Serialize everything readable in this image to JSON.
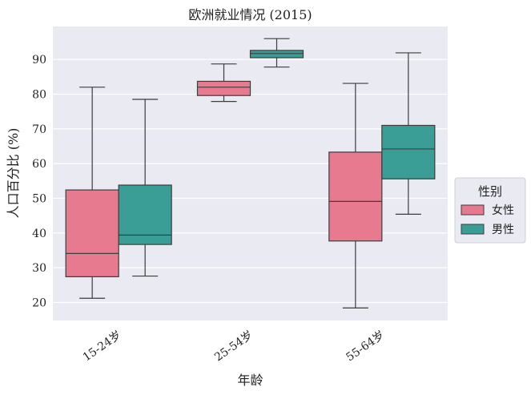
{
  "chart_data": {
    "type": "box",
    "title": "欧洲就业情况 (2015)",
    "xlabel": "年龄",
    "ylabel": "人口百分比 (%)",
    "categories": [
      "15-24岁",
      "25-54岁",
      "55-64岁"
    ],
    "ylim": [
      14.8,
      99.5
    ],
    "yticks": [
      20,
      30,
      40,
      50,
      60,
      70,
      80,
      90
    ],
    "grid": true,
    "legend": {
      "title": "性别",
      "placement": "right"
    },
    "series": [
      {
        "name": "女性",
        "color": "#e87a90",
        "boxes": [
          {
            "min": 21.2,
            "q1": 27.4,
            "median": 34.1,
            "q3": 52.4,
            "max": 82.0
          },
          {
            "min": 77.9,
            "q1": 79.6,
            "median": 82.0,
            "q3": 83.7,
            "max": 88.7
          },
          {
            "min": 18.4,
            "q1": 37.7,
            "median": 49.1,
            "q3": 63.3,
            "max": 83.1
          }
        ]
      },
      {
        "name": "男性",
        "color": "#3a9e96",
        "boxes": [
          {
            "min": 27.6,
            "q1": 36.7,
            "median": 39.4,
            "q3": 53.8,
            "max": 78.5
          },
          {
            "min": 87.8,
            "q1": 90.5,
            "median": 91.7,
            "q3": 92.6,
            "max": 96.0
          },
          {
            "min": 45.4,
            "q1": 55.6,
            "median": 64.2,
            "q3": 71.0,
            "max": 91.9
          }
        ]
      }
    ]
  }
}
